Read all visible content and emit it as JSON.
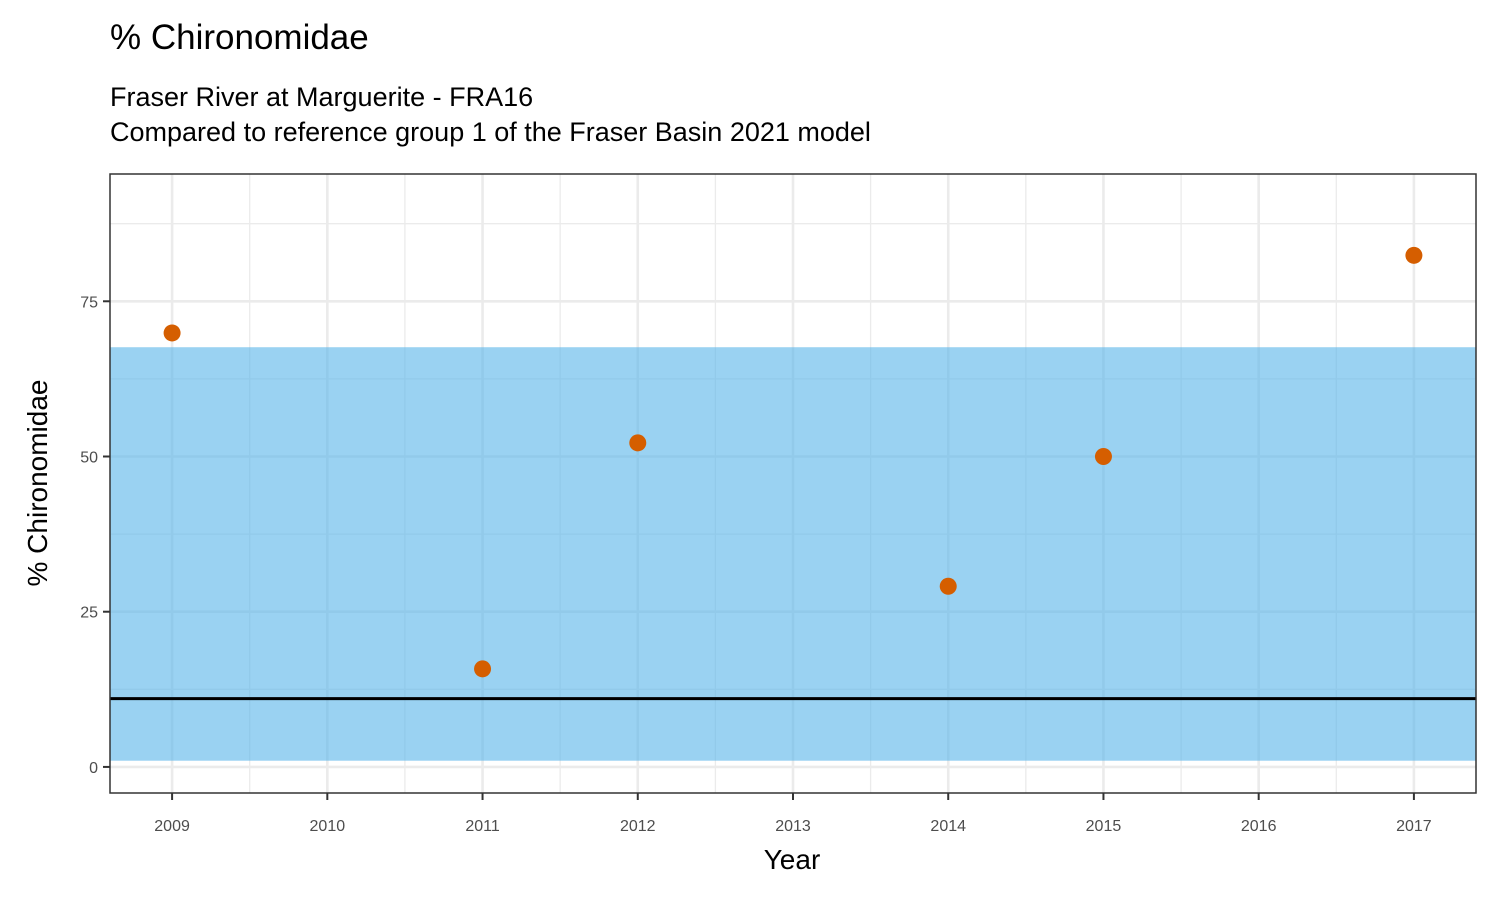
{
  "chart_data": {
    "type": "scatter",
    "title": "% Chironomidae",
    "subtitle_lines": [
      "Fraser River at Marguerite - FRA16",
      "Compared to reference group 1 of the Fraser Basin 2021 model"
    ],
    "xlabel": "Year",
    "ylabel": "% Chironomidae",
    "x_ticks": [
      2009,
      2010,
      2011,
      2012,
      2013,
      2014,
      2015,
      2016,
      2017
    ],
    "y_ticks": [
      0,
      25,
      50,
      75
    ],
    "xlim": [
      2008.6,
      2017.4
    ],
    "ylim": [
      -4.2,
      95.5
    ],
    "grid": true,
    "points": [
      {
        "x": 2009,
        "y": 69.9
      },
      {
        "x": 2011,
        "y": 15.8
      },
      {
        "x": 2012,
        "y": 52.2
      },
      {
        "x": 2014,
        "y": 29.1
      },
      {
        "x": 2015,
        "y": 50.0
      },
      {
        "x": 2017,
        "y": 82.4
      }
    ],
    "reference_band": {
      "low": 1.0,
      "high": 67.6
    },
    "reference_line": 11.0,
    "colors": {
      "points": "#d55e00",
      "band": "#56b4e9",
      "reference_line": "#000000",
      "grid": "#ebebeb",
      "panel_border": "#333333"
    }
  }
}
